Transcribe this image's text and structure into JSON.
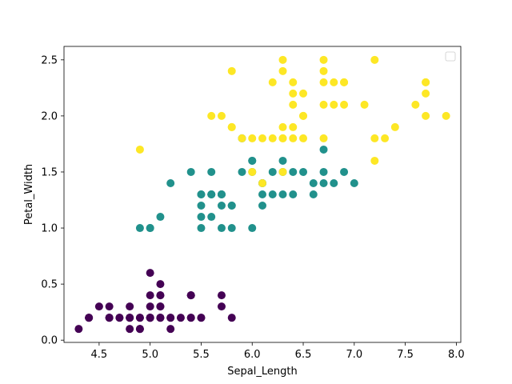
{
  "chart_data": {
    "type": "scatter",
    "title": "",
    "xlabel": "Sepal_Length",
    "ylabel": "Petal_Width",
    "xlim": [
      4.156,
      8.044
    ],
    "ylim": [
      -0.02,
      2.62
    ],
    "xticks": [
      4.5,
      5.0,
      5.5,
      6.0,
      6.5,
      7.0,
      7.5,
      8.0
    ],
    "yticks": [
      0.0,
      0.5,
      1.0,
      1.5,
      2.0,
      2.5
    ],
    "grid": false,
    "legend": {
      "placement": "upper right",
      "entries": []
    },
    "colors": {
      "setosa": "#440154",
      "versicolor": "#21918c",
      "virginica": "#fde725"
    },
    "series": [
      {
        "color_key": "setosa",
        "points": [
          [
            5.1,
            0.2
          ],
          [
            4.9,
            0.2
          ],
          [
            4.7,
            0.2
          ],
          [
            4.6,
            0.2
          ],
          [
            5.0,
            0.2
          ],
          [
            5.4,
            0.4
          ],
          [
            4.6,
            0.3
          ],
          [
            5.0,
            0.2
          ],
          [
            4.4,
            0.2
          ],
          [
            4.9,
            0.1
          ],
          [
            5.4,
            0.2
          ],
          [
            4.8,
            0.2
          ],
          [
            4.8,
            0.1
          ],
          [
            4.3,
            0.1
          ],
          [
            5.8,
            0.2
          ],
          [
            5.7,
            0.4
          ],
          [
            5.4,
            0.4
          ],
          [
            5.1,
            0.3
          ],
          [
            5.7,
            0.3
          ],
          [
            5.1,
            0.3
          ],
          [
            5.4,
            0.2
          ],
          [
            5.1,
            0.4
          ],
          [
            4.6,
            0.2
          ],
          [
            5.1,
            0.5
          ],
          [
            4.8,
            0.2
          ],
          [
            5.0,
            0.2
          ],
          [
            5.0,
            0.4
          ],
          [
            5.2,
            0.2
          ],
          [
            5.2,
            0.2
          ],
          [
            4.7,
            0.2
          ],
          [
            4.8,
            0.2
          ],
          [
            5.4,
            0.4
          ],
          [
            5.2,
            0.1
          ],
          [
            5.5,
            0.2
          ],
          [
            4.9,
            0.2
          ],
          [
            5.0,
            0.2
          ],
          [
            5.5,
            0.2
          ],
          [
            4.9,
            0.1
          ],
          [
            4.4,
            0.2
          ],
          [
            5.1,
            0.2
          ],
          [
            5.0,
            0.3
          ],
          [
            4.5,
            0.3
          ],
          [
            4.4,
            0.2
          ],
          [
            5.0,
            0.6
          ],
          [
            5.1,
            0.4
          ],
          [
            4.8,
            0.3
          ],
          [
            5.1,
            0.2
          ],
          [
            4.6,
            0.2
          ],
          [
            5.3,
            0.2
          ],
          [
            5.0,
            0.2
          ]
        ]
      },
      {
        "color_key": "versicolor",
        "points": [
          [
            7.0,
            1.4
          ],
          [
            6.4,
            1.5
          ],
          [
            6.9,
            1.5
          ],
          [
            5.5,
            1.3
          ],
          [
            6.5,
            1.5
          ],
          [
            5.7,
            1.3
          ],
          [
            6.3,
            1.6
          ],
          [
            4.9,
            1.0
          ],
          [
            6.6,
            1.3
          ],
          [
            5.2,
            1.4
          ],
          [
            5.0,
            1.0
          ],
          [
            5.9,
            1.5
          ],
          [
            6.0,
            1.0
          ],
          [
            6.1,
            1.4
          ],
          [
            5.6,
            1.3
          ],
          [
            6.7,
            1.4
          ],
          [
            5.6,
            1.5
          ],
          [
            5.8,
            1.0
          ],
          [
            6.2,
            1.5
          ],
          [
            5.6,
            1.1
          ],
          [
            5.9,
            1.8
          ],
          [
            6.1,
            1.3
          ],
          [
            6.3,
            1.5
          ],
          [
            6.1,
            1.2
          ],
          [
            6.4,
            1.3
          ],
          [
            6.6,
            1.4
          ],
          [
            6.8,
            1.4
          ],
          [
            6.7,
            1.7
          ],
          [
            6.0,
            1.5
          ],
          [
            5.7,
            1.0
          ],
          [
            5.5,
            1.1
          ],
          [
            5.5,
            1.0
          ],
          [
            5.8,
            1.2
          ],
          [
            6.0,
            1.6
          ],
          [
            5.4,
            1.5
          ],
          [
            6.0,
            1.6
          ],
          [
            6.7,
            1.5
          ],
          [
            6.3,
            1.3
          ],
          [
            5.6,
            1.3
          ],
          [
            5.5,
            1.3
          ],
          [
            5.5,
            1.2
          ],
          [
            6.1,
            1.4
          ],
          [
            5.8,
            1.2
          ],
          [
            5.0,
            1.0
          ],
          [
            5.6,
            1.3
          ],
          [
            5.7,
            1.2
          ],
          [
            5.7,
            1.3
          ],
          [
            6.2,
            1.3
          ],
          [
            5.1,
            1.1
          ],
          [
            5.7,
            1.3
          ]
        ]
      },
      {
        "color_key": "virginica",
        "points": [
          [
            6.3,
            2.5
          ],
          [
            5.8,
            1.9
          ],
          [
            7.1,
            2.1
          ],
          [
            6.3,
            1.8
          ],
          [
            6.5,
            2.2
          ],
          [
            7.6,
            2.1
          ],
          [
            4.9,
            1.7
          ],
          [
            7.3,
            1.8
          ],
          [
            6.7,
            1.8
          ],
          [
            7.2,
            2.5
          ],
          [
            6.5,
            2.0
          ],
          [
            6.4,
            1.9
          ],
          [
            6.8,
            2.1
          ],
          [
            5.7,
            2.0
          ],
          [
            5.8,
            2.4
          ],
          [
            6.4,
            2.3
          ],
          [
            6.5,
            1.8
          ],
          [
            7.7,
            2.2
          ],
          [
            7.7,
            2.3
          ],
          [
            6.0,
            1.5
          ],
          [
            6.9,
            2.3
          ],
          [
            5.6,
            2.0
          ],
          [
            7.7,
            2.0
          ],
          [
            6.3,
            1.8
          ],
          [
            6.7,
            2.1
          ],
          [
            7.2,
            1.8
          ],
          [
            6.2,
            1.8
          ],
          [
            6.1,
            1.8
          ],
          [
            6.4,
            2.1
          ],
          [
            7.2,
            1.6
          ],
          [
            7.4,
            1.9
          ],
          [
            7.9,
            2.0
          ],
          [
            6.4,
            2.2
          ],
          [
            6.3,
            1.5
          ],
          [
            6.1,
            1.4
          ],
          [
            7.7,
            2.3
          ],
          [
            6.3,
            2.4
          ],
          [
            6.4,
            1.8
          ],
          [
            6.0,
            1.8
          ],
          [
            6.9,
            2.1
          ],
          [
            6.7,
            2.4
          ],
          [
            6.9,
            2.3
          ],
          [
            5.8,
            1.9
          ],
          [
            6.8,
            2.3
          ],
          [
            6.7,
            2.5
          ],
          [
            6.7,
            2.3
          ],
          [
            6.3,
            1.9
          ],
          [
            6.5,
            2.0
          ],
          [
            6.2,
            2.3
          ],
          [
            5.9,
            1.8
          ]
        ]
      }
    ]
  }
}
